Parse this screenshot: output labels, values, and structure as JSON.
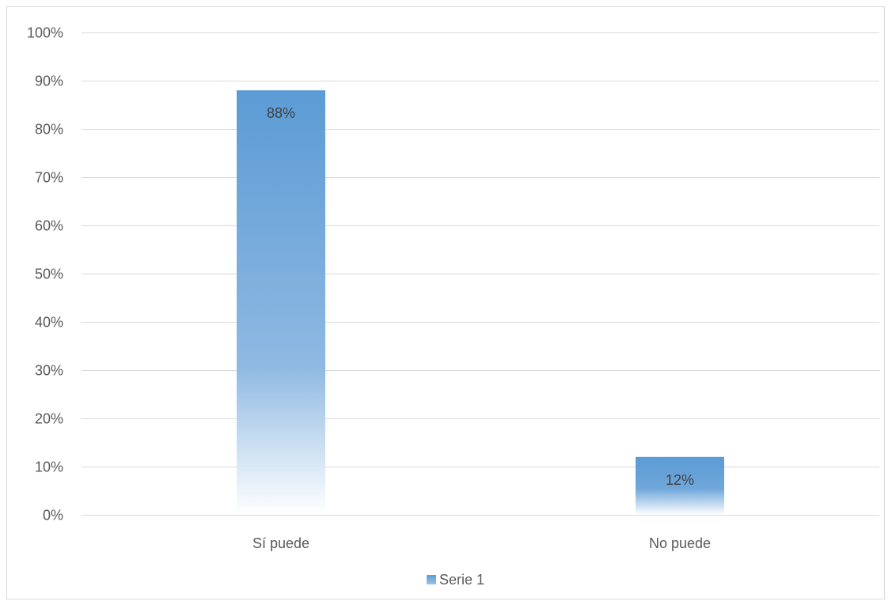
{
  "chart_data": {
    "type": "bar",
    "title": "",
    "xlabel": "",
    "ylabel": "",
    "categories": [
      "Sí puede",
      "No puede"
    ],
    "series": [
      {
        "name": "Serie 1",
        "values": [
          88,
          12
        ],
        "data_labels": [
          "88%",
          "12%"
        ],
        "color": "#5b9bd5",
        "fill_style": "vertical-gradient-fading-to-white"
      }
    ],
    "ylim": [
      0,
      100
    ],
    "y_ticks": [
      0,
      10,
      20,
      30,
      40,
      50,
      60,
      70,
      80,
      90,
      100
    ],
    "y_tick_labels": [
      "0%",
      "10%",
      "20%",
      "30%",
      "40%",
      "50%",
      "60%",
      "70%",
      "80%",
      "90%",
      "100%"
    ],
    "grid": true,
    "legend_position": "bottom",
    "colors": {
      "gridline": "#d9d9d9",
      "axis_text": "#595959",
      "data_label_text": "#404040",
      "frame": "#d9d9d9"
    }
  }
}
